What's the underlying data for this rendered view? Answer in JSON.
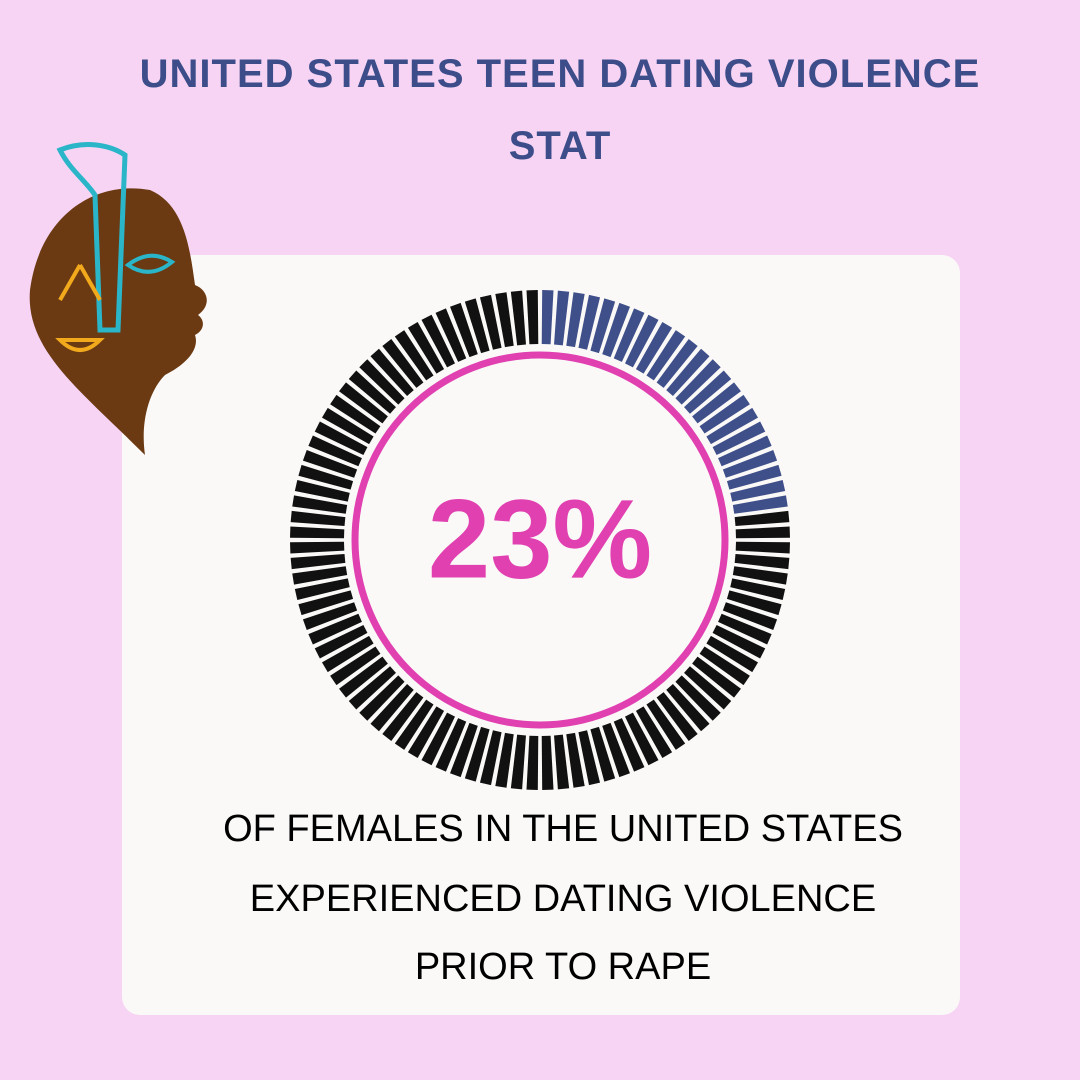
{
  "chart_data": {
    "type": "gauge",
    "title": "UNITED STATES TEEN DATING VIOLENCE STAT",
    "value": 23,
    "value_label": "23%",
    "ylim": [
      0,
      100
    ],
    "color": "#3f4f8a",
    "track_color": "#111111",
    "ring_color": "#e040b0",
    "caption": [
      "OF FEMALES IN THE UNITED STATES",
      "EXPERIENCED DATING VIOLENCE",
      "PRIOR TO RAPE"
    ]
  }
}
